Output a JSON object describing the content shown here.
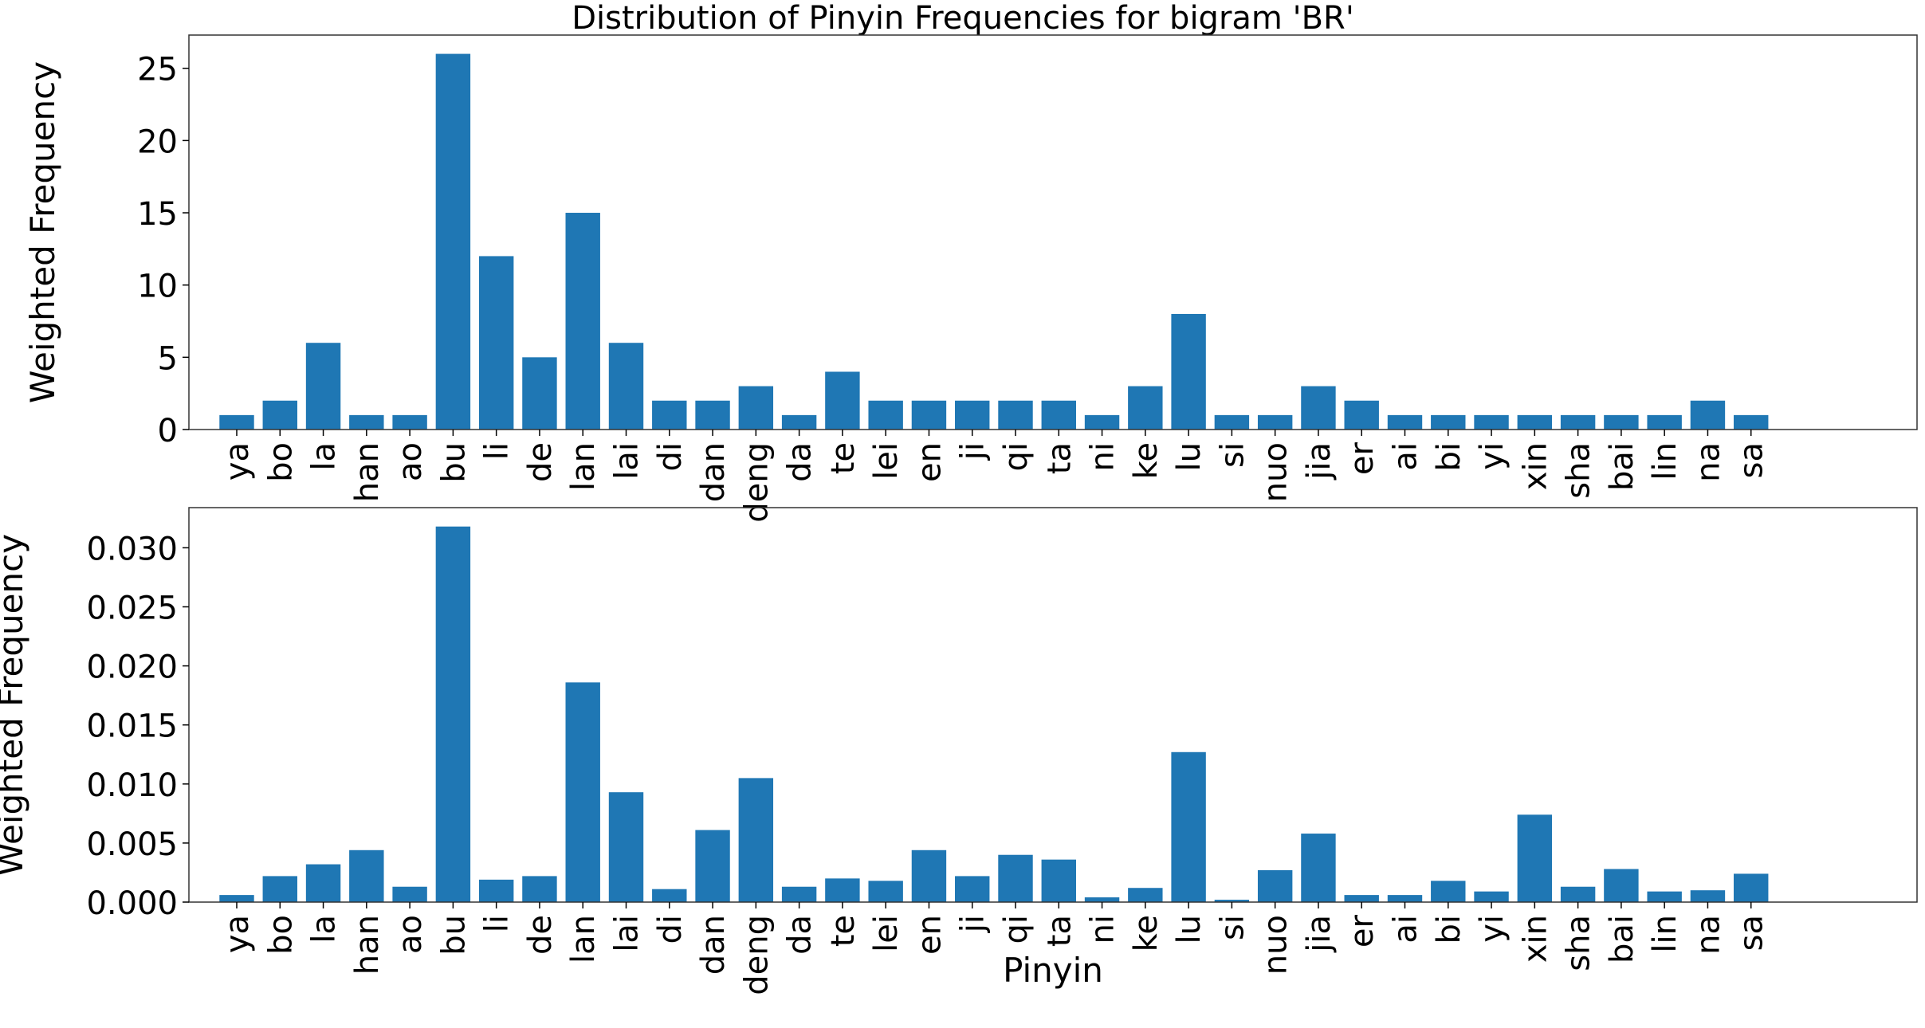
{
  "figure": {
    "title": "Distribution of Pinyin Frequencies for bigram 'BR'",
    "bar_color": "#1f77b4"
  },
  "chart_data": [
    {
      "type": "bar",
      "title": "Distribution of Pinyin Frequencies for bigram 'BR'",
      "xlabel": "",
      "ylabel": "Weighted Frequency",
      "categories": [
        "ya",
        "bo",
        "la",
        "han",
        "ao",
        "bu",
        "li",
        "de",
        "lan",
        "lai",
        "di",
        "dan",
        "deng",
        "da",
        "te",
        "lei",
        "en",
        "ji",
        "qi",
        "ta",
        "ni",
        "ke",
        "lu",
        "si",
        "nuo",
        "jia",
        "er",
        "ai",
        "bi",
        "yi",
        "xin",
        "sha",
        "bai",
        "lin",
        "na",
        "sa"
      ],
      "values": [
        1,
        2,
        6,
        1,
        1,
        26,
        12,
        5,
        15,
        6,
        2,
        2,
        3,
        1,
        4,
        2,
        2,
        2,
        2,
        2,
        1,
        3,
        8,
        1,
        1,
        3,
        2,
        1,
        1,
        1,
        1,
        1,
        1,
        1,
        2,
        1
      ],
      "ylim": [
        0,
        27.3
      ],
      "yticks": [
        0,
        5,
        10,
        15,
        20,
        25
      ],
      "ytick_labels": [
        "0",
        "5",
        "10",
        "15",
        "20",
        "25"
      ],
      "grid": false,
      "color": "#1f77b4"
    },
    {
      "type": "bar",
      "title": "",
      "xlabel": "Pinyin",
      "ylabel": "Weighted Frequency",
      "categories": [
        "ya",
        "bo",
        "la",
        "han",
        "ao",
        "bu",
        "li",
        "de",
        "lan",
        "lai",
        "di",
        "dan",
        "deng",
        "da",
        "te",
        "lei",
        "en",
        "ji",
        "qi",
        "ta",
        "ni",
        "ke",
        "lu",
        "si",
        "nuo",
        "jia",
        "er",
        "ai",
        "bi",
        "yi",
        "xin",
        "sha",
        "bai",
        "lin",
        "na",
        "sa"
      ],
      "values": [
        0.0006,
        0.0022,
        0.0032,
        0.0044,
        0.0013,
        0.0318,
        0.0019,
        0.0022,
        0.0186,
        0.0093,
        0.0011,
        0.0061,
        0.0105,
        0.0013,
        0.002,
        0.0018,
        0.0044,
        0.0022,
        0.004,
        0.0036,
        0.0004,
        0.0012,
        0.0127,
        0.0002,
        0.0027,
        0.0058,
        0.0006,
        0.0006,
        0.0018,
        0.0009,
        0.0074,
        0.0013,
        0.0028,
        0.0009,
        0.001,
        0.0024
      ],
      "ylim": [
        0,
        0.0334
      ],
      "yticks": [
        0,
        0.005,
        0.01,
        0.015,
        0.02,
        0.025,
        0.03
      ],
      "ytick_labels": [
        "0.000",
        "0.005",
        "0.010",
        "0.015",
        "0.020",
        "0.025",
        "0.030"
      ],
      "grid": false,
      "color": "#1f77b4"
    }
  ]
}
